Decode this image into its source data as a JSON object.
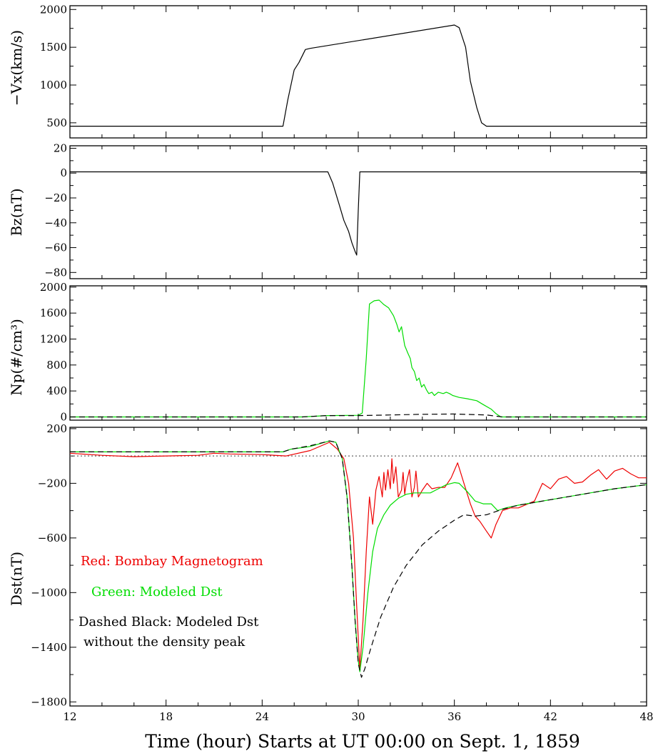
{
  "chart_data": [
    {
      "type": "line",
      "ylabel": "−Vx(km/s)",
      "ylim": [
        300,
        2050
      ],
      "yticks": [
        500,
        1000,
        1500,
        2000
      ],
      "xlim": [
        12,
        48
      ],
      "series": [
        {
          "color": "#000000",
          "dashed": false,
          "points": [
            [
              12,
              455
            ],
            [
              25.3,
              455
            ],
            [
              25.6,
              800
            ],
            [
              26.0,
              1200
            ],
            [
              26.3,
              1300
            ],
            [
              26.7,
              1470
            ],
            [
              27.0,
              1485
            ],
            [
              36.0,
              1795
            ],
            [
              36.3,
              1760
            ],
            [
              36.7,
              1500
            ],
            [
              37.0,
              1050
            ],
            [
              37.4,
              700
            ],
            [
              37.7,
              500
            ],
            [
              38.0,
              455
            ],
            [
              48,
              455
            ]
          ]
        }
      ]
    },
    {
      "type": "line",
      "ylabel": "Bz(nT)",
      "ylim": [
        -85,
        22
      ],
      "yticks": [
        -80,
        -60,
        -40,
        -20,
        0,
        20
      ],
      "xlim": [
        12,
        48
      ],
      "series": [
        {
          "color": "#000000",
          "dashed": false,
          "points": [
            [
              12,
              1
            ],
            [
              28.1,
              1
            ],
            [
              28.4,
              -8
            ],
            [
              28.8,
              -25
            ],
            [
              29.1,
              -38
            ],
            [
              29.4,
              -47
            ],
            [
              29.6,
              -56
            ],
            [
              29.8,
              -63
            ],
            [
              29.9,
              -66
            ],
            [
              30.0,
              -30
            ],
            [
              30.1,
              1
            ],
            [
              48,
              1
            ]
          ]
        }
      ]
    },
    {
      "type": "line",
      "ylabel": "Np(#/cm³)",
      "ylim": [
        -50,
        2020
      ],
      "yticks": [
        0,
        400,
        800,
        1200,
        1600,
        2000
      ],
      "xlim": [
        12,
        48
      ],
      "series": [
        {
          "color": "#00dd00",
          "dashed": false,
          "points": [
            [
              12,
              0
            ],
            [
              26.5,
              0
            ],
            [
              28,
              20
            ],
            [
              30,
              25
            ],
            [
              30.25,
              60
            ],
            [
              30.5,
              900
            ],
            [
              30.7,
              1740
            ],
            [
              31.0,
              1790
            ],
            [
              31.3,
              1800
            ],
            [
              31.6,
              1730
            ],
            [
              31.9,
              1680
            ],
            [
              32.2,
              1560
            ],
            [
              32.4,
              1430
            ],
            [
              32.55,
              1310
            ],
            [
              32.7,
              1390
            ],
            [
              32.9,
              1100
            ],
            [
              33.1,
              980
            ],
            [
              33.25,
              900
            ],
            [
              33.35,
              760
            ],
            [
              33.5,
              700
            ],
            [
              33.65,
              560
            ],
            [
              33.8,
              600
            ],
            [
              33.95,
              460
            ],
            [
              34.1,
              500
            ],
            [
              34.25,
              420
            ],
            [
              34.4,
              360
            ],
            [
              34.6,
              380
            ],
            [
              34.75,
              330
            ],
            [
              35.0,
              380
            ],
            [
              35.3,
              360
            ],
            [
              35.5,
              380
            ],
            [
              35.7,
              360
            ],
            [
              35.9,
              330
            ],
            [
              36.3,
              300
            ],
            [
              36.8,
              280
            ],
            [
              37.4,
              250
            ],
            [
              37.8,
              190
            ],
            [
              38.3,
              120
            ],
            [
              38.6,
              50
            ],
            [
              38.9,
              0
            ],
            [
              48,
              0
            ]
          ]
        },
        {
          "color": "#000000",
          "dashed": true,
          "points": [
            [
              12,
              0
            ],
            [
              26.5,
              0
            ],
            [
              28,
              20
            ],
            [
              30,
              20
            ],
            [
              31,
              25
            ],
            [
              34,
              40
            ],
            [
              36,
              45
            ],
            [
              38,
              30
            ],
            [
              39,
              0
            ],
            [
              48,
              0
            ]
          ]
        }
      ]
    },
    {
      "type": "line",
      "ylabel": "Dst(nT)",
      "ylim": [
        -1830,
        210
      ],
      "yticks": [
        -1800,
        -1400,
        -1000,
        -600,
        -200,
        200
      ],
      "xlim": [
        12,
        48
      ],
      "xticks": [
        12,
        18,
        24,
        30,
        36,
        42,
        48
      ],
      "xlabel": "Time (hour) Starts at UT 00:00 on Sept. 1, 1859",
      "refline": {
        "value": 0,
        "color": "#666666",
        "style": "dotted"
      },
      "annotations": [
        {
          "text": "Red: Bombay Magnetogram",
          "color": "#ee0000"
        },
        {
          "text": "Green: Modeled Dst",
          "color": "#00dd00"
        },
        {
          "text": "Dashed Black: Modeled Dst",
          "color": "#000000"
        },
        {
          "text": "without the density peak",
          "color": "#000000"
        }
      ],
      "series": [
        {
          "color": "#ee0000",
          "dashed": false,
          "points": [
            [
              12,
              20
            ],
            [
              14,
              5
            ],
            [
              16,
              -5
            ],
            [
              18,
              0
            ],
            [
              20,
              5
            ],
            [
              21,
              20
            ],
            [
              22,
              15
            ],
            [
              24,
              10
            ],
            [
              25.5,
              0
            ],
            [
              27,
              40
            ],
            [
              28.2,
              100
            ],
            [
              28.7,
              50
            ],
            [
              29.1,
              -20
            ],
            [
              29.4,
              -200
            ],
            [
              29.7,
              -600
            ],
            [
              29.9,
              -1100
            ],
            [
              30.1,
              -1560
            ],
            [
              30.3,
              -1200
            ],
            [
              30.5,
              -700
            ],
            [
              30.7,
              -300
            ],
            [
              30.9,
              -500
            ],
            [
              31.1,
              -250
            ],
            [
              31.3,
              -150
            ],
            [
              31.5,
              -300
            ],
            [
              31.6,
              -120
            ],
            [
              31.7,
              -250
            ],
            [
              31.85,
              -100
            ],
            [
              32.0,
              -240
            ],
            [
              32.1,
              -20
            ],
            [
              32.2,
              -200
            ],
            [
              32.35,
              -80
            ],
            [
              32.5,
              -300
            ],
            [
              32.7,
              -250
            ],
            [
              32.8,
              -120
            ],
            [
              32.9,
              -280
            ],
            [
              33.0,
              -200
            ],
            [
              33.2,
              -100
            ],
            [
              33.35,
              -300
            ],
            [
              33.5,
              -230
            ],
            [
              33.6,
              -110
            ],
            [
              33.75,
              -300
            ],
            [
              34.0,
              -250
            ],
            [
              34.3,
              -200
            ],
            [
              34.6,
              -240
            ],
            [
              35.0,
              -230
            ],
            [
              35.4,
              -230
            ],
            [
              35.8,
              -160
            ],
            [
              36.2,
              -50
            ],
            [
              36.6,
              -200
            ],
            [
              37.0,
              -350
            ],
            [
              37.3,
              -440
            ],
            [
              37.6,
              -480
            ],
            [
              38.0,
              -550
            ],
            [
              38.3,
              -600
            ],
            [
              38.6,
              -500
            ],
            [
              39.0,
              -400
            ],
            [
              39.5,
              -380
            ],
            [
              40.0,
              -380
            ],
            [
              40.6,
              -350
            ],
            [
              41.0,
              -330
            ],
            [
              41.5,
              -200
            ],
            [
              42.0,
              -240
            ],
            [
              42.5,
              -170
            ],
            [
              43.0,
              -150
            ],
            [
              43.5,
              -200
            ],
            [
              44.0,
              -190
            ],
            [
              44.5,
              -140
            ],
            [
              45.0,
              -100
            ],
            [
              45.5,
              -170
            ],
            [
              46.0,
              -110
            ],
            [
              46.5,
              -90
            ],
            [
              47.0,
              -130
            ],
            [
              47.5,
              -160
            ],
            [
              48,
              -160
            ]
          ]
        },
        {
          "color": "#00dd00",
          "dashed": false,
          "points": [
            [
              12,
              30
            ],
            [
              25.3,
              30
            ],
            [
              25.8,
              50
            ],
            [
              27,
              70
            ],
            [
              28.2,
              110
            ],
            [
              28.6,
              100
            ],
            [
              29.0,
              -20
            ],
            [
              29.3,
              -300
            ],
            [
              29.6,
              -800
            ],
            [
              29.8,
              -1200
            ],
            [
              30.0,
              -1500
            ],
            [
              30.1,
              -1580
            ],
            [
              30.3,
              -1400
            ],
            [
              30.6,
              -1000
            ],
            [
              30.9,
              -700
            ],
            [
              31.2,
              -530
            ],
            [
              31.6,
              -430
            ],
            [
              32.0,
              -360
            ],
            [
              32.5,
              -310
            ],
            [
              33.0,
              -280
            ],
            [
              33.5,
              -270
            ],
            [
              34.0,
              -270
            ],
            [
              34.5,
              -270
            ],
            [
              35.0,
              -240
            ],
            [
              35.5,
              -210
            ],
            [
              36.0,
              -195
            ],
            [
              36.3,
              -200
            ],
            [
              36.8,
              -260
            ],
            [
              37.3,
              -330
            ],
            [
              37.8,
              -350
            ],
            [
              38.3,
              -350
            ],
            [
              38.7,
              -400
            ],
            [
              39.2,
              -380
            ],
            [
              40,
              -360
            ],
            [
              42,
              -320
            ],
            [
              44,
              -280
            ],
            [
              46,
              -240
            ],
            [
              48,
              -210
            ]
          ]
        },
        {
          "color": "#000000",
          "dashed": true,
          "points": [
            [
              12,
              30
            ],
            [
              25.3,
              30
            ],
            [
              25.8,
              50
            ],
            [
              27,
              75
            ],
            [
              28.2,
              110
            ],
            [
              28.6,
              100
            ],
            [
              29.0,
              -20
            ],
            [
              29.3,
              -300
            ],
            [
              29.6,
              -800
            ],
            [
              29.8,
              -1200
            ],
            [
              30.0,
              -1520
            ],
            [
              30.2,
              -1620
            ],
            [
              30.4,
              -1560
            ],
            [
              30.8,
              -1400
            ],
            [
              31.4,
              -1180
            ],
            [
              32.2,
              -960
            ],
            [
              33.0,
              -800
            ],
            [
              34.0,
              -650
            ],
            [
              35.0,
              -550
            ],
            [
              36.0,
              -470
            ],
            [
              36.6,
              -430
            ],
            [
              37.3,
              -440
            ],
            [
              38.0,
              -430
            ],
            [
              39.0,
              -390
            ],
            [
              40,
              -360
            ],
            [
              42,
              -320
            ],
            [
              44,
              -280
            ],
            [
              46,
              -240
            ],
            [
              48,
              -210
            ]
          ]
        }
      ]
    }
  ]
}
